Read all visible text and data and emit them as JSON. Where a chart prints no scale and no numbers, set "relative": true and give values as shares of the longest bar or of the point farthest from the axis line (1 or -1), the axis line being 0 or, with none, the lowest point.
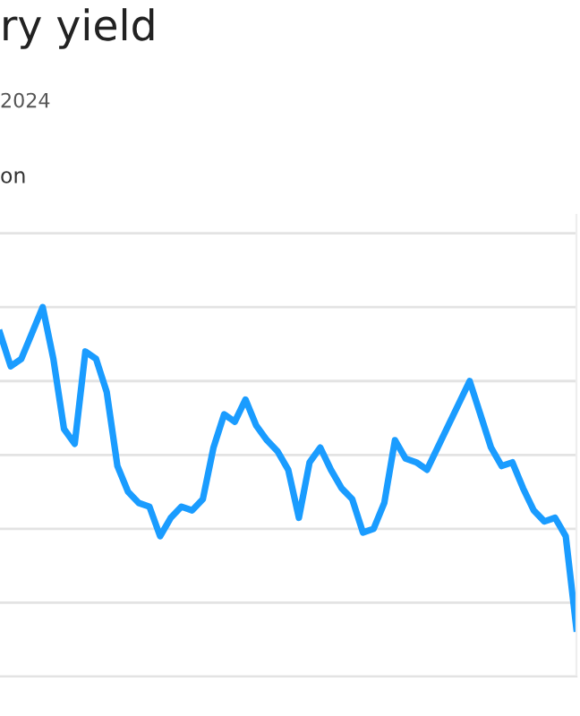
{
  "chart_data": {
    "type": "line",
    "title": "ry yield",
    "subtitle": "2024",
    "annotations": [
      "on"
    ],
    "relative": true,
    "grid": "y",
    "marker": "none",
    "line_style": "solid",
    "categories": [
      null,
      null,
      null,
      null,
      null,
      null,
      null,
      null,
      null,
      null,
      null,
      null,
      null,
      null,
      null,
      null,
      null,
      null,
      null,
      null,
      null,
      null,
      null,
      null,
      null,
      null,
      null,
      null,
      null,
      null,
      null,
      null,
      null,
      null,
      null,
      null,
      null,
      null,
      null,
      null,
      null,
      null,
      null,
      null,
      null,
      null,
      null,
      null,
      null,
      null,
      null,
      null,
      null,
      null,
      null
    ],
    "series": [
      {
        "color": "#1a9cff",
        "values": [
          0.93,
          0.84,
          0.86,
          0.93,
          1.0,
          0.86,
          0.67,
          0.63,
          0.88,
          0.86,
          0.77,
          0.57,
          0.5,
          0.47,
          0.46,
          0.38,
          0.43,
          0.46,
          0.45,
          0.48,
          0.62,
          0.71,
          0.69,
          0.75,
          0.68,
          0.64,
          0.61,
          0.56,
          0.43,
          0.58,
          0.62,
          0.56,
          0.51,
          0.48,
          0.39,
          0.4,
          0.47,
          0.64,
          0.59,
          0.58,
          0.56,
          0.62,
          0.68,
          0.74,
          0.8,
          0.71,
          0.62,
          0.57,
          0.58,
          0.51,
          0.45,
          0.42,
          0.43,
          0.38,
          0.13
        ]
      }
    ]
  }
}
